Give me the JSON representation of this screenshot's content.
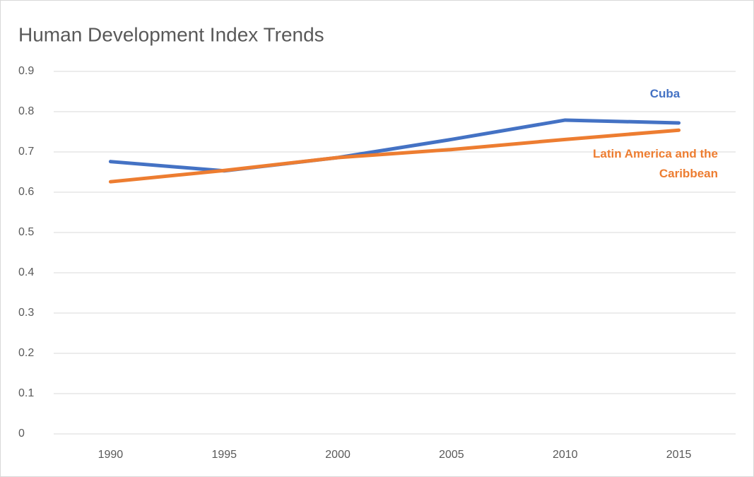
{
  "chart_data": {
    "type": "line",
    "title": "Human Development Index Trends",
    "categories": [
      "1990",
      "1995",
      "2000",
      "2005",
      "2010",
      "2015"
    ],
    "series": [
      {
        "name": "Cuba",
        "color": "#4472c4",
        "values": [
          0.676,
          0.653,
          0.686,
          0.731,
          0.779,
          0.772
        ]
      },
      {
        "name": "Latin America and the Caribbean",
        "color": "#ed7d31",
        "values": [
          0.626,
          0.654,
          0.686,
          0.706,
          0.731,
          0.754
        ]
      }
    ],
    "ylim": [
      0,
      0.9
    ],
    "yticks": [
      0,
      0.1,
      0.2,
      0.3,
      0.4,
      0.5,
      0.6,
      0.7,
      0.8,
      0.9
    ],
    "grid": true
  }
}
